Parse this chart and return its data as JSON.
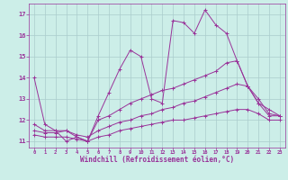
{
  "xlabel": "Windchill (Refroidissement éolien,°C)",
  "bg_color": "#cceee8",
  "grid_color": "#aacccc",
  "line_color": "#993399",
  "xlim": [
    -0.5,
    23.5
  ],
  "ylim": [
    10.7,
    17.5
  ],
  "yticks": [
    11,
    12,
    13,
    14,
    15,
    16,
    17
  ],
  "xticks": [
    0,
    1,
    2,
    3,
    4,
    5,
    6,
    7,
    8,
    9,
    10,
    11,
    12,
    13,
    14,
    15,
    16,
    17,
    18,
    19,
    20,
    21,
    22,
    23
  ],
  "lines": [
    {
      "x": [
        0,
        1,
        2,
        3,
        4,
        5,
        6,
        7,
        8,
        9,
        10,
        11,
        12,
        13,
        14,
        15,
        16,
        17,
        18,
        19,
        20,
        21,
        22,
        23
      ],
      "y": [
        14.0,
        11.8,
        11.5,
        11.0,
        11.2,
        11.0,
        12.2,
        13.3,
        14.4,
        15.3,
        15.0,
        13.0,
        12.8,
        16.7,
        16.6,
        16.1,
        17.2,
        16.5,
        16.1,
        14.8,
        13.6,
        12.8,
        12.2,
        12.2
      ]
    },
    {
      "x": [
        0,
        1,
        2,
        3,
        4,
        5,
        6,
        7,
        8,
        9,
        10,
        11,
        12,
        13,
        14,
        15,
        16,
        17,
        18,
        19,
        20,
        21,
        22,
        23
      ],
      "y": [
        11.8,
        11.5,
        11.5,
        11.5,
        11.2,
        11.0,
        12.0,
        12.2,
        12.5,
        12.8,
        13.0,
        13.2,
        13.4,
        13.5,
        13.7,
        13.9,
        14.1,
        14.3,
        14.7,
        14.8,
        13.6,
        12.8,
        12.5,
        12.2
      ]
    },
    {
      "x": [
        0,
        1,
        2,
        3,
        4,
        5,
        6,
        7,
        8,
        9,
        10,
        11,
        12,
        13,
        14,
        15,
        16,
        17,
        18,
        19,
        20,
        21,
        22,
        23
      ],
      "y": [
        11.5,
        11.4,
        11.4,
        11.5,
        11.3,
        11.2,
        11.5,
        11.7,
        11.9,
        12.0,
        12.2,
        12.3,
        12.5,
        12.6,
        12.8,
        12.9,
        13.1,
        13.3,
        13.5,
        13.7,
        13.6,
        13.0,
        12.3,
        12.2
      ]
    },
    {
      "x": [
        0,
        1,
        2,
        3,
        4,
        5,
        6,
        7,
        8,
        9,
        10,
        11,
        12,
        13,
        14,
        15,
        16,
        17,
        18,
        19,
        20,
        21,
        22,
        23
      ],
      "y": [
        11.3,
        11.2,
        11.2,
        11.2,
        11.1,
        11.0,
        11.2,
        11.3,
        11.5,
        11.6,
        11.7,
        11.8,
        11.9,
        12.0,
        12.0,
        12.1,
        12.2,
        12.3,
        12.4,
        12.5,
        12.5,
        12.3,
        12.0,
        12.0
      ]
    }
  ]
}
